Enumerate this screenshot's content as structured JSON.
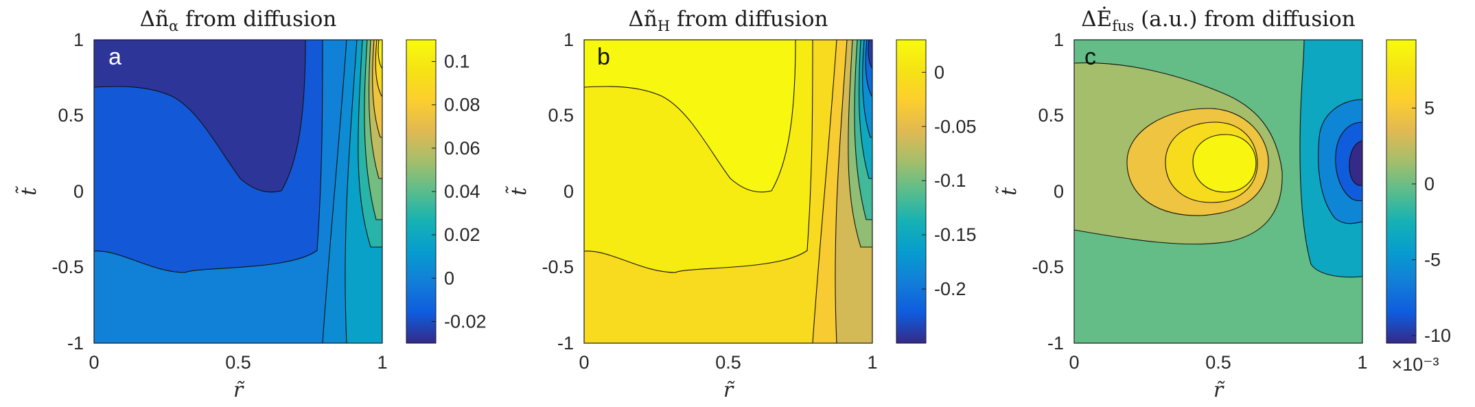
{
  "chart_data": [
    {
      "type": "heatmap",
      "subtype": "filled-contour",
      "panel_label": "a",
      "title_parts": {
        "prefix": "Δñ",
        "sub": "α",
        "suffix": " from diffusion"
      },
      "xlabel": "r̃",
      "ylabel": "t̃",
      "xlim": [
        0,
        1
      ],
      "ylim": [
        -1,
        1
      ],
      "x_ticks": [
        "0",
        "0.5",
        "1"
      ],
      "y_ticks": [
        "1",
        "0.5",
        "0",
        "-0.5",
        "-1"
      ],
      "colorbar": {
        "range": [
          -0.03,
          0.11
        ],
        "ticks": [
          0.1,
          0.08,
          0.06,
          0.04,
          0.02,
          0,
          -0.02
        ],
        "tick_labels": [
          "0.1",
          "0.08",
          "0.06",
          "0.04",
          "0.02",
          "0",
          "-0.02"
        ],
        "exponent_label": ""
      },
      "regions": [
        {
          "name": "base",
          "value": 0.0
        },
        {
          "name": "upper-left",
          "value": -0.017
        },
        {
          "name": "core",
          "value": -0.027
        },
        {
          "name": "edge-1",
          "value": 0.005
        },
        {
          "name": "edge-2",
          "value": 0.015
        },
        {
          "name": "edge-3",
          "value": 0.03
        },
        {
          "name": "edge-4",
          "value": 0.045
        },
        {
          "name": "edge-5",
          "value": 0.06
        },
        {
          "name": "edge-6",
          "value": 0.075
        },
        {
          "name": "edge-7",
          "value": 0.09
        },
        {
          "name": "edge-8",
          "value": 0.105
        }
      ]
    },
    {
      "type": "heatmap",
      "subtype": "filled-contour",
      "panel_label": "b",
      "title_parts": {
        "prefix": "Δñ",
        "sub": "H",
        "suffix": " from diffusion"
      },
      "xlabel": "r̃",
      "ylabel": "t̃",
      "xlim": [
        0,
        1
      ],
      "ylim": [
        -1,
        1
      ],
      "x_ticks": [
        "0",
        "0.5",
        "1"
      ],
      "y_ticks": [
        "1",
        "0.5",
        "0",
        "-0.5",
        "-1"
      ],
      "colorbar": {
        "range": [
          -0.25,
          0.03
        ],
        "ticks": [
          0,
          -0.05,
          -0.1,
          -0.15,
          -0.2
        ],
        "tick_labels": [
          "0",
          "-0.05",
          "-0.1",
          "-0.15",
          "-0.2"
        ],
        "exponent_label": ""
      },
      "regions": [
        {
          "name": "base",
          "value": -0.01
        },
        {
          "name": "upper-left",
          "value": 0.012
        },
        {
          "name": "core",
          "value": 0.025
        },
        {
          "name": "edge-1",
          "value": -0.03
        },
        {
          "name": "edge-2",
          "value": -0.06
        },
        {
          "name": "edge-3",
          "value": -0.09
        },
        {
          "name": "edge-4",
          "value": -0.12
        },
        {
          "name": "edge-5",
          "value": -0.15
        },
        {
          "name": "edge-6",
          "value": -0.18
        },
        {
          "name": "edge-7",
          "value": -0.21
        },
        {
          "name": "edge-8",
          "value": -0.24
        }
      ]
    },
    {
      "type": "heatmap",
      "subtype": "filled-contour",
      "panel_label": "c",
      "title_parts": {
        "prefix": "ΔĖ",
        "sub": "fus",
        "suffix": " (a.u.) from diffusion"
      },
      "xlabel": "r̃",
      "ylabel": "t̃",
      "xlim": [
        0,
        1
      ],
      "ylim": [
        -1,
        1
      ],
      "x_ticks": [
        "0",
        "0.5",
        "1"
      ],
      "y_ticks": [
        "1",
        "0.5",
        "0",
        "-0.5",
        "-1"
      ],
      "colorbar": {
        "range": [
          -0.0105,
          0.0095
        ],
        "ticks": [
          0.005,
          0,
          -0.005,
          -0.01
        ],
        "tick_labels": [
          "5",
          "0",
          "-5",
          "-10"
        ],
        "exponent_label": "×10⁻³"
      },
      "regions": [
        {
          "name": "background",
          "value": -0.0002
        },
        {
          "name": "ring-1",
          "value": 0.0015
        },
        {
          "name": "ring-2",
          "value": 0.0045
        },
        {
          "name": "ring-3",
          "value": 0.0068
        },
        {
          "name": "peak",
          "value": 0.009
        },
        {
          "name": "trough-1",
          "value": -0.0035
        },
        {
          "name": "trough-2",
          "value": -0.006
        },
        {
          "name": "trough-3",
          "value": -0.0085
        },
        {
          "name": "trough-core",
          "value": -0.0105
        }
      ]
    }
  ]
}
